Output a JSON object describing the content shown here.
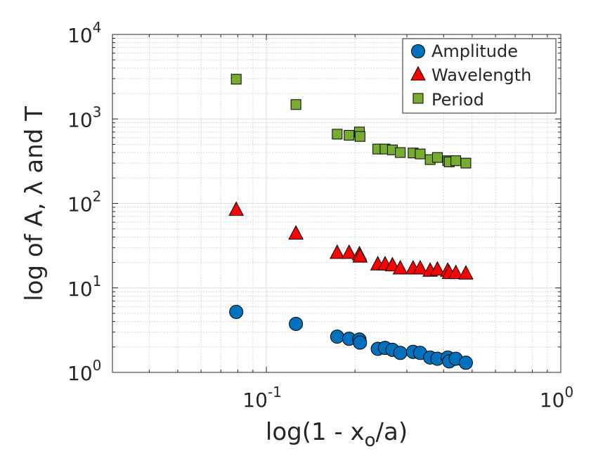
{
  "chart_data": {
    "type": "scatter",
    "xscale": "log",
    "yscale": "log",
    "xlim": [
      0.03,
      1
    ],
    "ylim": [
      1,
      10000
    ],
    "xlabel": "log(1 - x_o/a)",
    "xlabel_parts": {
      "pre": "log(1 - x",
      "sub": "o",
      "post": "/a)"
    },
    "ylabel": "log of A, λ and T",
    "grid": true,
    "minor_grid": true,
    "x_ticks": [
      {
        "value": 0.1,
        "base": "10",
        "exp": "-1"
      },
      {
        "value": 1,
        "base": "10",
        "exp": "0"
      }
    ],
    "y_ticks": [
      {
        "value": 1,
        "base": "10",
        "exp": "0"
      },
      {
        "value": 10,
        "base": "10",
        "exp": "1"
      },
      {
        "value": 100,
        "base": "10",
        "exp": "2"
      },
      {
        "value": 1000,
        "base": "10",
        "exp": "3"
      },
      {
        "value": 10000,
        "base": "10",
        "exp": "4"
      }
    ],
    "legend_position": "top-right",
    "series": [
      {
        "name": "Amplitude",
        "marker": "circle",
        "color": "#0072BD",
        "x": [
          0.079,
          0.126,
          0.174,
          0.191,
          0.207,
          0.208,
          0.239,
          0.253,
          0.268,
          0.285,
          0.315,
          0.333,
          0.36,
          0.381,
          0.413,
          0.418,
          0.44,
          0.476
        ],
        "y": [
          5.2,
          3.75,
          2.65,
          2.5,
          2.45,
          2.25,
          1.9,
          1.95,
          1.85,
          1.7,
          1.75,
          1.7,
          1.5,
          1.45,
          1.5,
          1.35,
          1.45,
          1.3
        ]
      },
      {
        "name": "Wavelength",
        "marker": "triangle",
        "color": "#FF0000",
        "x": [
          0.079,
          0.126,
          0.174,
          0.191,
          0.207,
          0.208,
          0.239,
          0.253,
          0.268,
          0.285,
          0.315,
          0.333,
          0.36,
          0.381,
          0.413,
          0.418,
          0.44,
          0.476
        ],
        "y": [
          84,
          44,
          26,
          26,
          25,
          23.5,
          19,
          19,
          18.5,
          17,
          17,
          17,
          16,
          16.5,
          16,
          15,
          15,
          14.8
        ]
      },
      {
        "name": "Period",
        "marker": "square",
        "color": "#77AC30",
        "x": [
          0.079,
          0.126,
          0.174,
          0.191,
          0.207,
          0.208,
          0.239,
          0.253,
          0.268,
          0.285,
          0.315,
          0.333,
          0.36,
          0.381,
          0.413,
          0.418,
          0.44,
          0.476
        ],
        "y": [
          2950,
          1480,
          660,
          640,
          700,
          620,
          440,
          440,
          430,
          400,
          395,
          385,
          330,
          350,
          320,
          310,
          320,
          300
        ]
      }
    ]
  }
}
